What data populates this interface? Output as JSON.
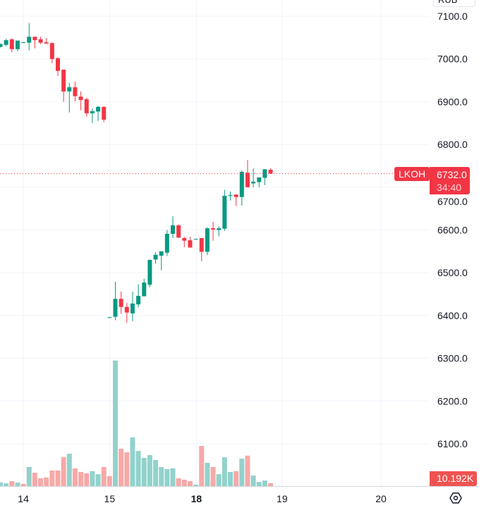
{
  "chart_data": {
    "type": "candlestick",
    "symbol": "LKOH",
    "currency": "RUB",
    "last_price": "6732.0",
    "countdown": "34:40",
    "last_volume_label": "10.192K",
    "y_ticks": [
      "7100.0",
      "7000.0",
      "6900.0",
      "6800.0",
      "6700.0",
      "6600.0",
      "6500.0",
      "6400.0",
      "6300.0",
      "6200.0",
      "6100.0"
    ],
    "y_tick_values": [
      7100,
      7000,
      6900,
      6800,
      6700,
      6600,
      6500,
      6400,
      6300,
      6200,
      6100
    ],
    "x_ticks": [
      {
        "label": "14",
        "index": 4,
        "bold": false
      },
      {
        "label": "15",
        "index": 19,
        "bold": false
      },
      {
        "label": "18",
        "index": 34.1,
        "bold": true
      },
      {
        "label": "19",
        "index": 49,
        "bold": false
      },
      {
        "label": "20",
        "index": 66.2,
        "bold": false
      }
    ],
    "grid": true,
    "colors": {
      "up": "#089981",
      "down": "#f23645",
      "vol_up": "#92d2cc",
      "vol_down": "#f7a9a7",
      "last_line": "#f23645"
    },
    "ohlc": [
      [
        7028,
        7035,
        7036,
        7027
      ],
      [
        7033,
        7044,
        7047,
        7030
      ],
      [
        7046,
        7023,
        7048,
        7016
      ],
      [
        7023,
        7043,
        7043,
        7018
      ],
      [
        7039,
        7039,
        7040,
        7038
      ],
      [
        7038,
        7052,
        7084,
        7020
      ],
      [
        7052,
        7044,
        7052,
        7025
      ],
      [
        7046,
        7038,
        7052,
        7035
      ],
      [
        7039,
        7036,
        7049,
        7036
      ],
      [
        7037,
        7000,
        7039,
        6990
      ],
      [
        7002,
        6972,
        7003,
        6960
      ],
      [
        6975,
        6924,
        6975,
        6900
      ],
      [
        6924,
        6934,
        6944,
        6875
      ],
      [
        6934,
        6913,
        6947,
        6901
      ],
      [
        6912,
        6904,
        6924,
        6880
      ],
      [
        6906,
        6873,
        6909,
        6865
      ],
      [
        6873,
        6878,
        6884,
        6850
      ],
      [
        6877,
        6888,
        6890,
        6855
      ],
      [
        6888,
        6858,
        6889,
        6852
      ],
      [
        6396,
        6396,
        6397,
        6395
      ],
      [
        6397,
        6439,
        6479,
        6389
      ],
      [
        6439,
        6420,
        6456,
        6404
      ],
      [
        6420,
        6407,
        6430,
        6383
      ],
      [
        6405,
        6428,
        6456,
        6387
      ],
      [
        6426,
        6446,
        6473,
        6419
      ],
      [
        6445,
        6477,
        6486,
        6445
      ],
      [
        6472,
        6530,
        6531,
        6466
      ],
      [
        6531,
        6542,
        6548,
        6521
      ],
      [
        6540,
        6550,
        6550,
        6506
      ],
      [
        6547,
        6591,
        6600,
        6539
      ],
      [
        6591,
        6611,
        6632,
        6581
      ],
      [
        6611,
        6582,
        6613,
        6582
      ],
      [
        6581,
        6575,
        6584,
        6560
      ],
      [
        6576,
        6559,
        6584,
        6559
      ],
      [
        6579,
        6579,
        6580,
        6578
      ],
      [
        6581,
        6549,
        6581,
        6527
      ],
      [
        6549,
        6604,
        6606,
        6541
      ],
      [
        6604,
        6601,
        6619,
        6575
      ],
      [
        6600,
        6604,
        6609,
        6585
      ],
      [
        6603,
        6680,
        6694,
        6598
      ],
      [
        6680,
        6682,
        6690,
        6669
      ],
      [
        6683,
        6677,
        6683,
        6656
      ],
      [
        6677,
        6736,
        6739,
        6657
      ],
      [
        6734,
        6700,
        6764,
        6700
      ],
      [
        6709,
        6713,
        6744,
        6700
      ],
      [
        6712,
        6723,
        6723,
        6700
      ],
      [
        6722,
        6742,
        6742,
        6705
      ],
      [
        6741,
        6732,
        6744,
        6731
      ]
    ],
    "volume_k": [
      13,
      10,
      18,
      13,
      8,
      69,
      48,
      28,
      31,
      56,
      56,
      104,
      117,
      64,
      51,
      46,
      54,
      43,
      69,
      36,
      454,
      135,
      122,
      176,
      127,
      102,
      112,
      94,
      69,
      61,
      64,
      28,
      23,
      18,
      5,
      145,
      84,
      69,
      43,
      104,
      51,
      54,
      99,
      110,
      38,
      15,
      20,
      10.192
    ],
    "volume_up": [
      1,
      1,
      0,
      1,
      0,
      1,
      0,
      0,
      0,
      0,
      0,
      0,
      1,
      0,
      0,
      0,
      1,
      1,
      0,
      0,
      1,
      0,
      0,
      1,
      1,
      1,
      1,
      1,
      1,
      1,
      1,
      0,
      0,
      0,
      1,
      0,
      1,
      0,
      1,
      1,
      1,
      0,
      1,
      0,
      1,
      1,
      1,
      0
    ],
    "ylim": [
      6000,
      7140
    ]
  }
}
